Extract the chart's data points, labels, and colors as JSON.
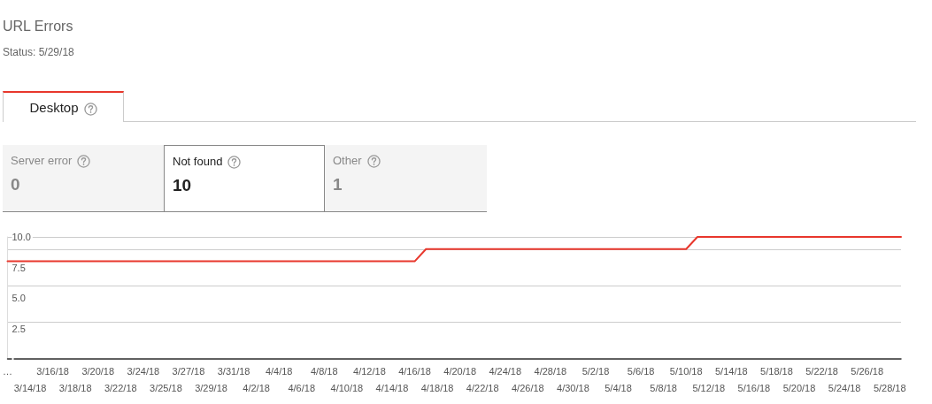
{
  "chart_data": {
    "type": "line",
    "title": "URL Errors",
    "subtitle": "Status: 5/29/18",
    "annotations": [
      "Desktop",
      "Server error",
      "0",
      "Not found",
      "10",
      "Other",
      "1"
    ],
    "categories": [
      "…",
      null,
      "3/14/18",
      null,
      "3/16/18",
      null,
      "3/18/18",
      null,
      "3/20/18",
      null,
      "3/22/18",
      null,
      "3/24/18",
      null,
      "3/25/18",
      null,
      "3/27/18",
      null,
      "3/29/18",
      null,
      "3/31/18",
      null,
      "4/2/18",
      null,
      "4/4/18",
      null,
      "4/6/18",
      null,
      "4/8/18",
      null,
      "4/10/18",
      null,
      "4/12/18",
      null,
      "4/14/18",
      null,
      "4/16/18",
      null,
      "4/18/18",
      null,
      "4/20/18",
      null,
      "4/22/18",
      null,
      "4/24/18",
      null,
      "4/26/18",
      null,
      "4/28/18",
      null,
      "4/30/18",
      null,
      "5/2/18",
      null,
      "5/4/18",
      null,
      "5/6/18",
      null,
      "5/8/18",
      null,
      "5/10/18",
      null,
      "5/12/18",
      null,
      "5/14/18",
      null,
      "5/16/18",
      null,
      "5/18/18",
      null,
      "5/20/18",
      null,
      "5/22/18",
      null,
      "5/24/18",
      null,
      "5/26/18",
      null,
      "5/28/18",
      null
    ],
    "series": [
      {
        "color": "#e8372c",
        "values": [
          8,
          8,
          8,
          8,
          8,
          8,
          8,
          8,
          8,
          8,
          8,
          8,
          8,
          8,
          8,
          8,
          8,
          8,
          8,
          8,
          8,
          8,
          8,
          8,
          8,
          8,
          8,
          8,
          8,
          8,
          8,
          8,
          8,
          8,
          8,
          8,
          8,
          9,
          9,
          9,
          9,
          9,
          9,
          9,
          9,
          9,
          9,
          9,
          9,
          9,
          9,
          9,
          9,
          9,
          9,
          9,
          9,
          9,
          9,
          9,
          9,
          10,
          10,
          10,
          10,
          10,
          10,
          10,
          10,
          10,
          10,
          10,
          10,
          10,
          10,
          10,
          10,
          10,
          10,
          10
        ]
      }
    ],
    "ylim": [
      0,
      10
    ],
    "yticks": [
      {
        "value": 0,
        "label": null
      },
      {
        "value": 2.5,
        "label": "2.5"
      },
      {
        "value": 5,
        "label": "5.0"
      },
      {
        "value": 7.5,
        "label": "7.5"
      },
      {
        "value": 10,
        "label": "10.0"
      }
    ],
    "grid": "y",
    "marker": "none",
    "line_style": "solid"
  }
}
